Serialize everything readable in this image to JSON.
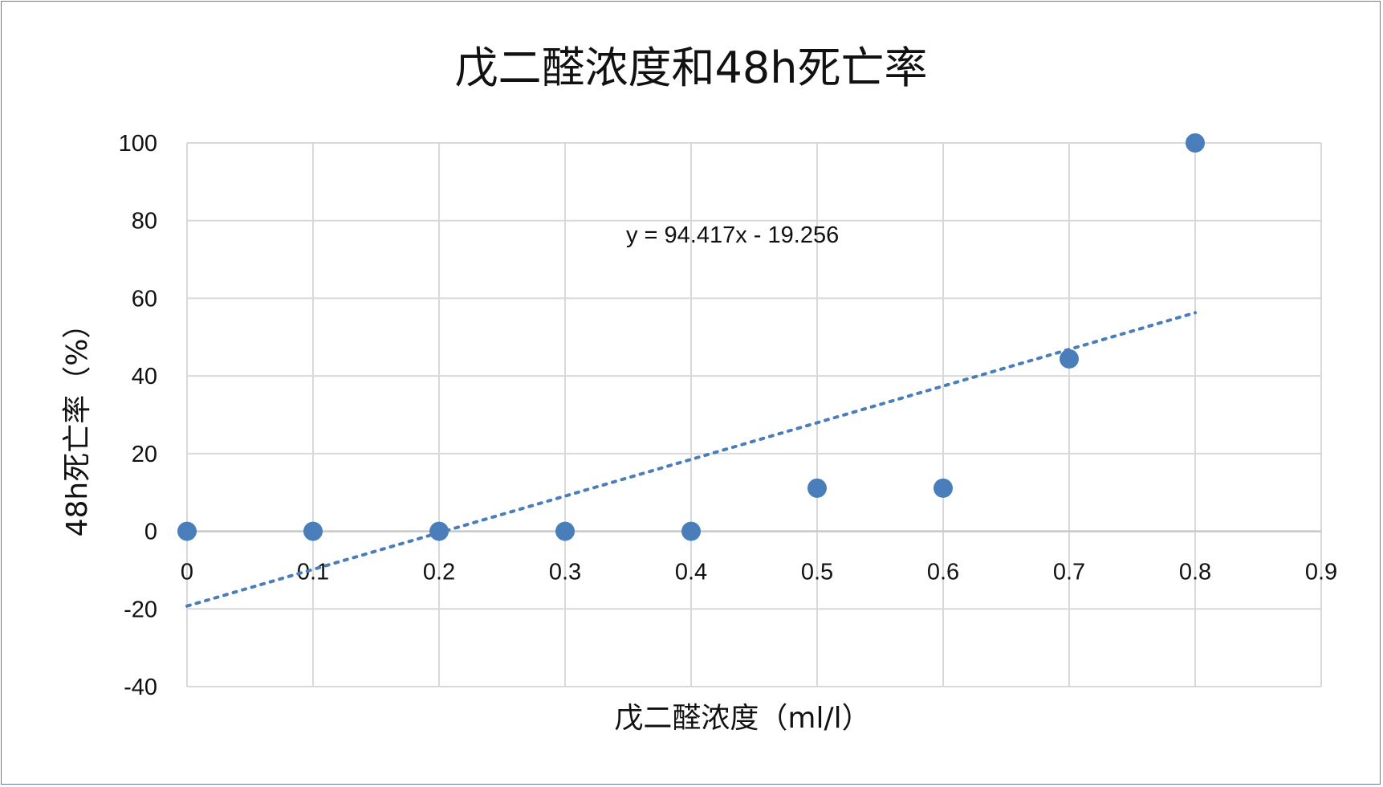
{
  "chart_data": {
    "type": "scatter",
    "title": "戊二醛浓度和48h死亡率",
    "xlabel": "戊二醛浓度（ml/l）",
    "ylabel": "48h死亡率（%）",
    "xlim": [
      0,
      0.9
    ],
    "ylim": [
      -40,
      100
    ],
    "x_ticks": [
      "0",
      "0.1",
      "0.2",
      "0.3",
      "0.4",
      "0.5",
      "0.6",
      "0.7",
      "0.8",
      "0.9"
    ],
    "y_ticks": [
      "100",
      "80",
      "60",
      "40",
      "20",
      "0",
      "-20",
      "-40"
    ],
    "grid": true,
    "legend": "none",
    "points": [
      {
        "x": 0,
        "y": 0
      },
      {
        "x": 0.1,
        "y": 0
      },
      {
        "x": 0.2,
        "y": 0
      },
      {
        "x": 0.3,
        "y": 0
      },
      {
        "x": 0.4,
        "y": 0
      },
      {
        "x": 0.5,
        "y": 11.1
      },
      {
        "x": 0.6,
        "y": 11.1
      },
      {
        "x": 0.7,
        "y": 44.4
      },
      {
        "x": 0.8,
        "y": 100
      }
    ],
    "trendline": {
      "type": "linear",
      "slope": 94.417,
      "intercept": -19.256,
      "x_range": [
        0,
        0.8
      ],
      "equation": "y = 94.417x - 19.256"
    },
    "colors": {
      "marker": "#4a7ebb",
      "trendline": "#4a7ebb",
      "grid": "#d9d9d9",
      "frame": "#5b7fa6"
    }
  }
}
